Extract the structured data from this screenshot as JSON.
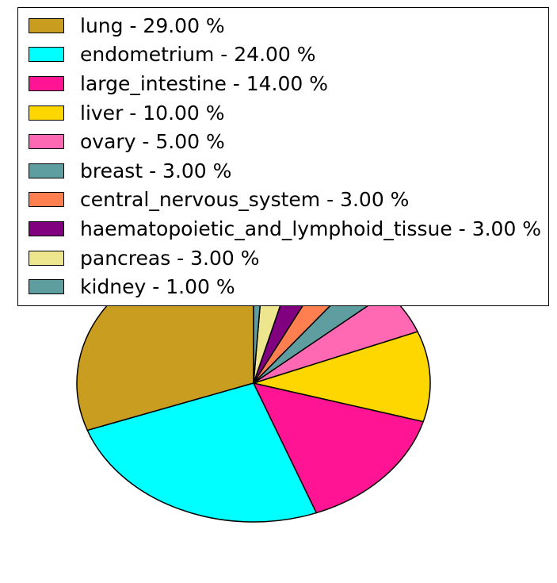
{
  "figure": {
    "background": "#ffffff",
    "title": ""
  },
  "chart_data": {
    "type": "pie",
    "title": "",
    "categories": [
      "lung",
      "endometrium",
      "large_intestine",
      "liver",
      "ovary",
      "breast",
      "central_nervous_system",
      "haematopoietic_and_lymphoid_tissue",
      "pancreas",
      "kidney"
    ],
    "values": [
      29,
      24,
      14,
      10,
      5,
      3,
      3,
      3,
      3,
      1
    ],
    "unit": "%",
    "colors": [
      "#C89D20",
      "#00FFFF",
      "#FF1493",
      "#FFD700",
      "#FF69B4",
      "#5F9EA0",
      "#FF7F50",
      "#800080",
      "#EDE68F",
      "#5F9EA0"
    ],
    "wedge_edge_color": "#000000",
    "start_angle": 90,
    "counterclock": true,
    "legend_position": "upper left",
    "legend": {
      "entries": [
        {
          "label": "lung",
          "display": "lung - 29.00 %",
          "color": "#C89D20"
        },
        {
          "label": "endometrium",
          "display": "endometrium - 24.00 %",
          "color": "#00FFFF"
        },
        {
          "label": "large_intestine",
          "display": "large_intestine - 14.00 %",
          "color": "#FF1493"
        },
        {
          "label": "liver",
          "display": "liver - 10.00 %",
          "color": "#FFD700"
        },
        {
          "label": "ovary",
          "display": "ovary - 5.00 %",
          "color": "#FF69B4"
        },
        {
          "label": "breast",
          "display": "breast - 3.00 %",
          "color": "#5F9EA0"
        },
        {
          "label": "central_nervous_system",
          "display": "central_nervous_system - 3.00 %",
          "color": "#FF7F50"
        },
        {
          "label": "haematopoietic_and_lymphoid_tissue",
          "display": "haematopoietic_and_lymphoid_tissue - 3.00 %",
          "color": "#800080"
        },
        {
          "label": "pancreas",
          "display": "pancreas - 3.00 %",
          "color": "#EDE68F"
        },
        {
          "label": "kidney",
          "display": "kidney - 1.00 %",
          "color": "#5F9EA0"
        }
      ]
    }
  }
}
